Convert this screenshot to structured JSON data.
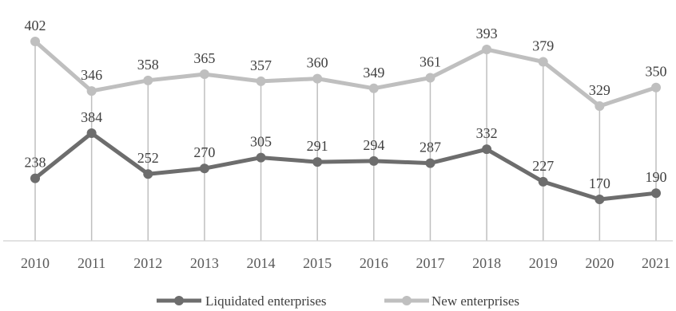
{
  "chart_data": {
    "type": "line",
    "title": "",
    "xlabel": "",
    "ylabel": "",
    "categories": [
      "2010",
      "2011",
      "2012",
      "2013",
      "2014",
      "2015",
      "2016",
      "2017",
      "2018",
      "2019",
      "2020",
      "2021"
    ],
    "series": [
      {
        "name": "Liquidated enterprises",
        "color": "#6d6d6d",
        "values": [
          238,
          384,
          252,
          270,
          305,
          291,
          294,
          287,
          332,
          227,
          170,
          190
        ]
      },
      {
        "name": "New enterprises",
        "color": "#bfbfbf",
        "values": [
          402,
          346,
          358,
          365,
          357,
          360,
          349,
          361,
          393,
          379,
          329,
          350
        ]
      }
    ],
    "grid": "vertical drop lines",
    "legend_position": "bottom"
  }
}
